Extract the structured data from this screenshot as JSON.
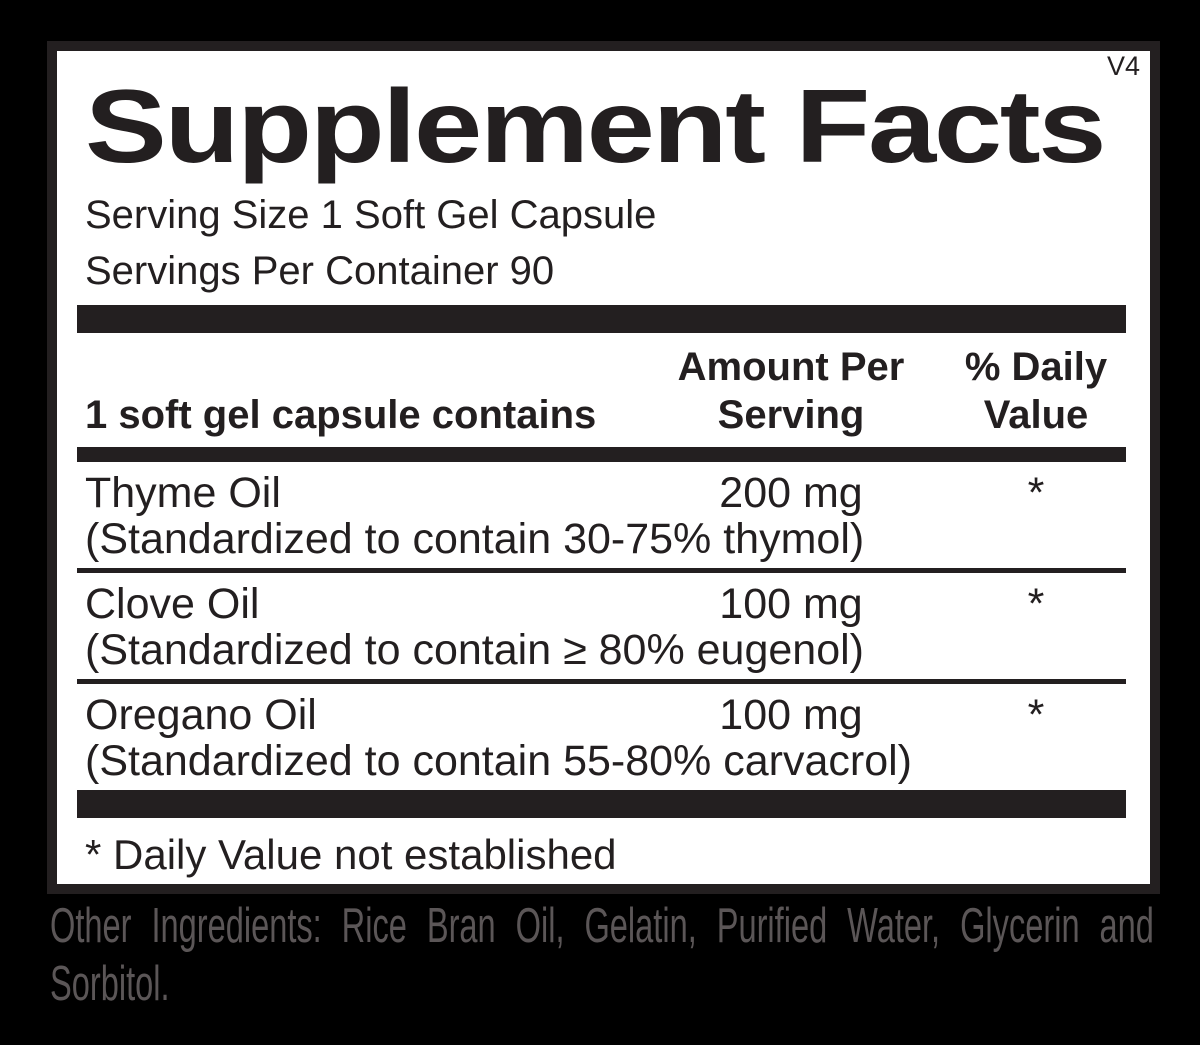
{
  "version": "V4",
  "title": "Supplement Facts",
  "serving": {
    "size_line": "Serving Size 1 Soft Gel Capsule",
    "per_container_line": "Servings Per Container 90"
  },
  "table": {
    "col1_header": "1 soft gel capsule contains",
    "amount_header_line1": "Amount Per",
    "amount_header_line2": "Serving",
    "dv_header_line1": "% Daily",
    "dv_header_line2": "Value",
    "rows": [
      {
        "name": "Thyme Oil",
        "amount": "200 mg",
        "daily_value": "*",
        "detail": "(Standardized to contain 30-75% thymol)"
      },
      {
        "name": "Clove Oil",
        "amount": "100 mg",
        "daily_value": "*",
        "detail": "(Standardized to contain ≥ 80% eugenol)"
      },
      {
        "name": "Oregano Oil",
        "amount": "100 mg",
        "daily_value": "*",
        "detail": "(Standardized to contain 55-80% carvacrol)"
      }
    ],
    "footnote": "* Daily Value not established"
  },
  "other_ingredients": {
    "line1": "Other Ingredients: Rice Bran Oil, Gelatin, Purified Water, Glycerin and",
    "line2": "Sorbitol."
  },
  "colors": {
    "ink": "#231f20",
    "panel_background": "#ffffff",
    "page_background": "#000000",
    "other_ingredients_text": "#5b5657"
  }
}
